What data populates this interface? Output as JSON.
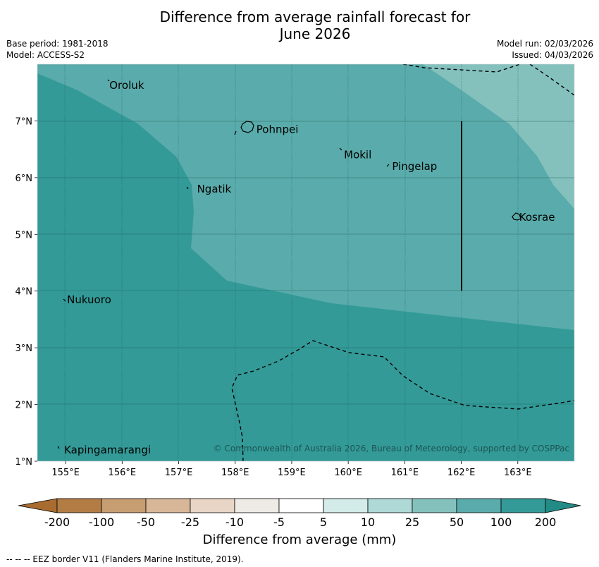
{
  "title_line1": "Difference from average rainfall forecast for",
  "title_line2": "June 2026",
  "meta_left": {
    "base_period": "Base period: 1981-2018",
    "model": "Model: ACCESS-S2"
  },
  "meta_right": {
    "model_run": "Model run: 02/03/2026",
    "issued": "Issued: 04/03/2026"
  },
  "map": {
    "lon_range": [
      154.5,
      164.0
    ],
    "lat_range": [
      1.0,
      8.0
    ],
    "lon_ticks": [
      "155°E",
      "156°E",
      "157°E",
      "158°E",
      "159°E",
      "160°E",
      "161°E",
      "162°E",
      "163°E"
    ],
    "lat_ticks": [
      "1°N",
      "2°N",
      "3°N",
      "4°N",
      "5°N",
      "6°N",
      "7°N"
    ],
    "places": [
      {
        "name": "Oroluk",
        "lon": 155.75,
        "lat": 7.63
      },
      {
        "name": "Pohnpei",
        "lon": 158.35,
        "lat": 6.85
      },
      {
        "name": "Mokil",
        "lon": 159.9,
        "lat": 6.4
      },
      {
        "name": "Pingelap",
        "lon": 160.75,
        "lat": 6.2
      },
      {
        "name": "Ngatik",
        "lon": 157.3,
        "lat": 5.8
      },
      {
        "name": "Kosrae",
        "lon": 163.0,
        "lat": 5.3
      },
      {
        "name": "Nukuoro",
        "lon": 155.0,
        "lat": 3.85
      },
      {
        "name": "Kapingamarangi",
        "lon": 154.95,
        "lat": 1.2
      }
    ],
    "copyright": "© Commonwealth of Australia 2026, Bureau of Meteorology, supported by COSPPac",
    "colors": {
      "band_100_200": "#339a97",
      "band_50_100": "#5aabab",
      "band_25_50": "#84c1bd"
    }
  },
  "colorbar": {
    "labels": [
      "-200",
      "-100",
      "-50",
      "-25",
      "-10",
      "-5",
      "5",
      "10",
      "25",
      "50",
      "100",
      "200"
    ],
    "colors": [
      "#a86c30",
      "#b27c45",
      "#c79d72",
      "#d8b799",
      "#e8d5c5",
      "#eeebe6",
      "#ffffff",
      "#d3ebe9",
      "#aed9d6",
      "#84c1bd",
      "#5aabab",
      "#339a97",
      "#238b86"
    ],
    "title": "Difference from average (mm)"
  },
  "footnote": "--  --  -- EEZ border V11 (Flanders Marine Institute, 2019)."
}
